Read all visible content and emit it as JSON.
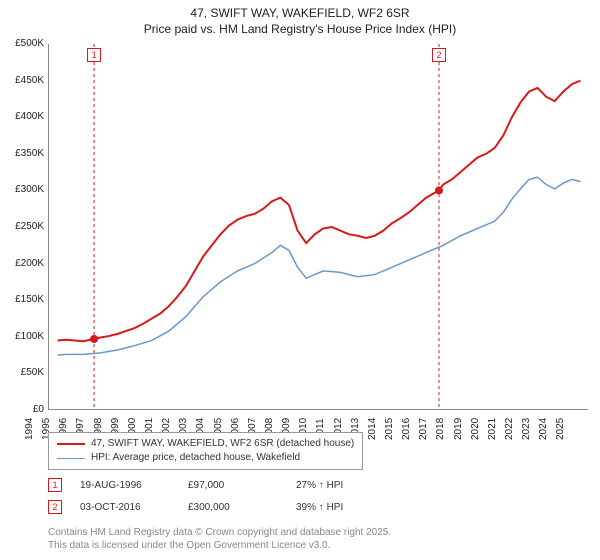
{
  "title": {
    "line1": "47, SWIFT WAY, WAKEFIELD, WF2 6SR",
    "line2": "Price paid vs. HM Land Registry's House Price Index (HPI)"
  },
  "chart": {
    "type": "line",
    "background_color": "#ffffff",
    "xlim": [
      1994,
      2025.5
    ],
    "ylim": [
      0,
      500000
    ],
    "y_ticks": [
      0,
      50000,
      100000,
      150000,
      200000,
      250000,
      300000,
      350000,
      400000,
      450000,
      500000
    ],
    "y_tick_labels": [
      "£0",
      "£50K",
      "£100K",
      "£150K",
      "£200K",
      "£250K",
      "£300K",
      "£350K",
      "£400K",
      "£450K",
      "£500K"
    ],
    "x_ticks": [
      1994,
      1995,
      1996,
      1997,
      1998,
      1999,
      2000,
      2001,
      2002,
      2003,
      2004,
      2005,
      2006,
      2007,
      2008,
      2009,
      2010,
      2011,
      2012,
      2013,
      2014,
      2015,
      2016,
      2017,
      2018,
      2019,
      2020,
      2021,
      2022,
      2023,
      2024,
      2025
    ],
    "series": [
      {
        "name": "47, SWIFT WAY, WAKEFIELD, WF2 6SR (detached house)",
        "color": "#d7191c",
        "line_width": 2,
        "points": [
          [
            1994.5,
            95000
          ],
          [
            1995,
            96000
          ],
          [
            1995.5,
            95000
          ],
          [
            1996,
            94000
          ],
          [
            1996.63,
            97000
          ],
          [
            1997,
            99000
          ],
          [
            1997.5,
            101000
          ],
          [
            1998,
            104000
          ],
          [
            1998.5,
            108000
          ],
          [
            1999,
            112000
          ],
          [
            1999.5,
            118000
          ],
          [
            2000,
            125000
          ],
          [
            2000.5,
            132000
          ],
          [
            2001,
            142000
          ],
          [
            2001.5,
            155000
          ],
          [
            2002,
            170000
          ],
          [
            2002.5,
            190000
          ],
          [
            2003,
            210000
          ],
          [
            2003.5,
            225000
          ],
          [
            2004,
            240000
          ],
          [
            2004.5,
            252000
          ],
          [
            2005,
            260000
          ],
          [
            2005.5,
            265000
          ],
          [
            2006,
            268000
          ],
          [
            2006.5,
            275000
          ],
          [
            2007,
            285000
          ],
          [
            2007.5,
            290000
          ],
          [
            2008,
            280000
          ],
          [
            2008.5,
            245000
          ],
          [
            2009,
            228000
          ],
          [
            2009.5,
            240000
          ],
          [
            2010,
            248000
          ],
          [
            2010.5,
            250000
          ],
          [
            2011,
            245000
          ],
          [
            2011.5,
            240000
          ],
          [
            2012,
            238000
          ],
          [
            2012.5,
            235000
          ],
          [
            2013,
            238000
          ],
          [
            2013.5,
            245000
          ],
          [
            2014,
            255000
          ],
          [
            2014.5,
            262000
          ],
          [
            2015,
            270000
          ],
          [
            2015.5,
            280000
          ],
          [
            2016,
            290000
          ],
          [
            2016.75,
            300000
          ],
          [
            2017,
            308000
          ],
          [
            2017.5,
            315000
          ],
          [
            2018,
            325000
          ],
          [
            2018.5,
            335000
          ],
          [
            2019,
            345000
          ],
          [
            2019.5,
            350000
          ],
          [
            2020,
            358000
          ],
          [
            2020.5,
            375000
          ],
          [
            2021,
            400000
          ],
          [
            2021.5,
            420000
          ],
          [
            2022,
            435000
          ],
          [
            2022.5,
            440000
          ],
          [
            2023,
            428000
          ],
          [
            2023.5,
            422000
          ],
          [
            2024,
            435000
          ],
          [
            2024.5,
            445000
          ],
          [
            2025,
            450000
          ]
        ]
      },
      {
        "name": "HPI: Average price, detached house, Wakefield",
        "color": "#6699cc",
        "line_width": 1.5,
        "points": [
          [
            1994.5,
            75000
          ],
          [
            1995,
            76000
          ],
          [
            1996,
            76000
          ],
          [
            1997,
            78000
          ],
          [
            1998,
            82000
          ],
          [
            1999,
            88000
          ],
          [
            2000,
            95000
          ],
          [
            2001,
            108000
          ],
          [
            2002,
            128000
          ],
          [
            2003,
            155000
          ],
          [
            2004,
            175000
          ],
          [
            2005,
            190000
          ],
          [
            2006,
            200000
          ],
          [
            2007,
            215000
          ],
          [
            2007.5,
            225000
          ],
          [
            2008,
            218000
          ],
          [
            2008.5,
            195000
          ],
          [
            2009,
            180000
          ],
          [
            2010,
            190000
          ],
          [
            2011,
            188000
          ],
          [
            2012,
            182000
          ],
          [
            2013,
            185000
          ],
          [
            2014,
            195000
          ],
          [
            2015,
            205000
          ],
          [
            2016,
            215000
          ],
          [
            2017,
            225000
          ],
          [
            2018,
            238000
          ],
          [
            2019,
            248000
          ],
          [
            2020,
            258000
          ],
          [
            2020.5,
            270000
          ],
          [
            2021,
            288000
          ],
          [
            2021.5,
            302000
          ],
          [
            2022,
            315000
          ],
          [
            2022.5,
            318000
          ],
          [
            2023,
            308000
          ],
          [
            2023.5,
            302000
          ],
          [
            2024,
            310000
          ],
          [
            2024.5,
            315000
          ],
          [
            2025,
            312000
          ]
        ]
      }
    ],
    "sale_markers": [
      {
        "label": "1",
        "x": 1996.63,
        "y": 97000,
        "color": "#d7191c"
      },
      {
        "label": "2",
        "x": 2016.75,
        "y": 300000,
        "color": "#d7191c"
      }
    ],
    "vlines": [
      {
        "x": 1996.63,
        "color": "#d7191c"
      },
      {
        "x": 2016.75,
        "color": "#d7191c"
      }
    ]
  },
  "legend": {
    "items": [
      {
        "color": "#d7191c",
        "width": 2,
        "label": "47, SWIFT WAY, WAKEFIELD, WF2 6SR (detached house)"
      },
      {
        "color": "#6699cc",
        "width": 1.5,
        "label": "HPI: Average price, detached house, Wakefield"
      }
    ]
  },
  "data_rows": [
    {
      "marker": "1",
      "marker_color": "#d7191c",
      "date": "19-AUG-1996",
      "price": "£97,000",
      "delta": "27% ↑ HPI"
    },
    {
      "marker": "2",
      "marker_color": "#d7191c",
      "date": "03-OCT-2016",
      "price": "£300,000",
      "delta": "39% ↑ HPI"
    }
  ],
  "footer": {
    "line1": "Contains HM Land Registry data © Crown copyright and database right 2025.",
    "line2": "This data is licensed under the Open Government Licence v3.0."
  }
}
